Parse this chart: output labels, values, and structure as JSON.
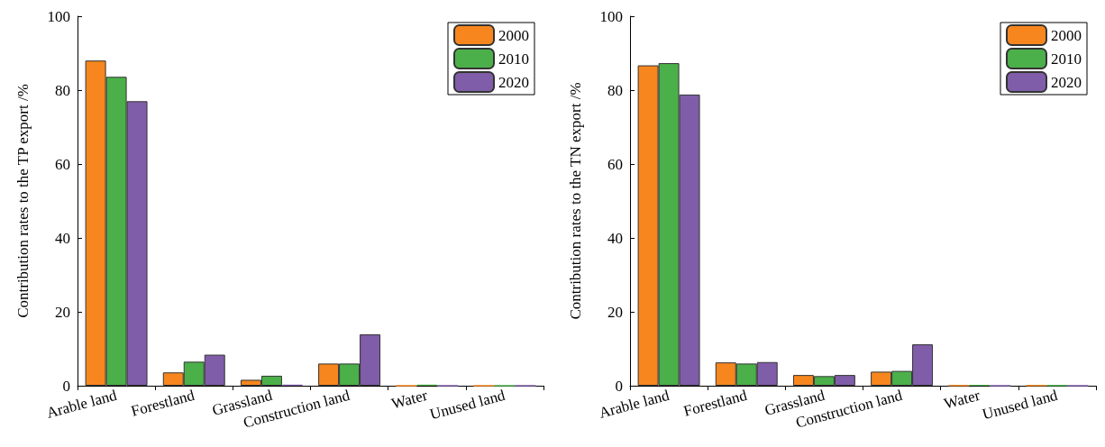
{
  "chart_data": [
    {
      "type": "bar",
      "ylabel": "Contribution rates to the TP export /%",
      "categories": [
        "Arable land",
        "Forestland",
        "Grassland",
        "Construction land",
        "Water",
        "Unused land"
      ],
      "series": [
        {
          "name": "2000",
          "color": "#f7861e",
          "values": [
            88,
            3.6,
            1.6,
            6,
            0,
            0
          ]
        },
        {
          "name": "2010",
          "color": "#4bb04a",
          "values": [
            83.6,
            6.5,
            2.7,
            6,
            0.3,
            0
          ]
        },
        {
          "name": "2020",
          "color": "#7f5da8",
          "values": [
            77,
            8.4,
            0.3,
            13.9,
            0,
            0
          ]
        }
      ],
      "ylim": [
        0,
        100
      ],
      "yticks": [
        0,
        20,
        40,
        60,
        80,
        100
      ],
      "grid": false,
      "legend": "top right"
    },
    {
      "type": "bar",
      "ylabel": "Contribution rates to the TN export /%",
      "categories": [
        "Arable land",
        "Forestland",
        "Grassland",
        "Construction land",
        "Water",
        "Unused land"
      ],
      "series": [
        {
          "name": "2000",
          "color": "#f7861e",
          "values": [
            86.7,
            6.3,
            2.9,
            3.8,
            0.1,
            0.1
          ]
        },
        {
          "name": "2010",
          "color": "#4bb04a",
          "values": [
            87.3,
            6,
            2.6,
            4,
            0.2,
            0.1
          ]
        },
        {
          "name": "2020",
          "color": "#7f5da8",
          "values": [
            78.8,
            6.4,
            2.9,
            11.2,
            0,
            0
          ]
        }
      ],
      "ylim": [
        0,
        100
      ],
      "yticks": [
        0,
        20,
        40,
        60,
        80,
        100
      ],
      "grid": false,
      "legend": "top right"
    }
  ]
}
